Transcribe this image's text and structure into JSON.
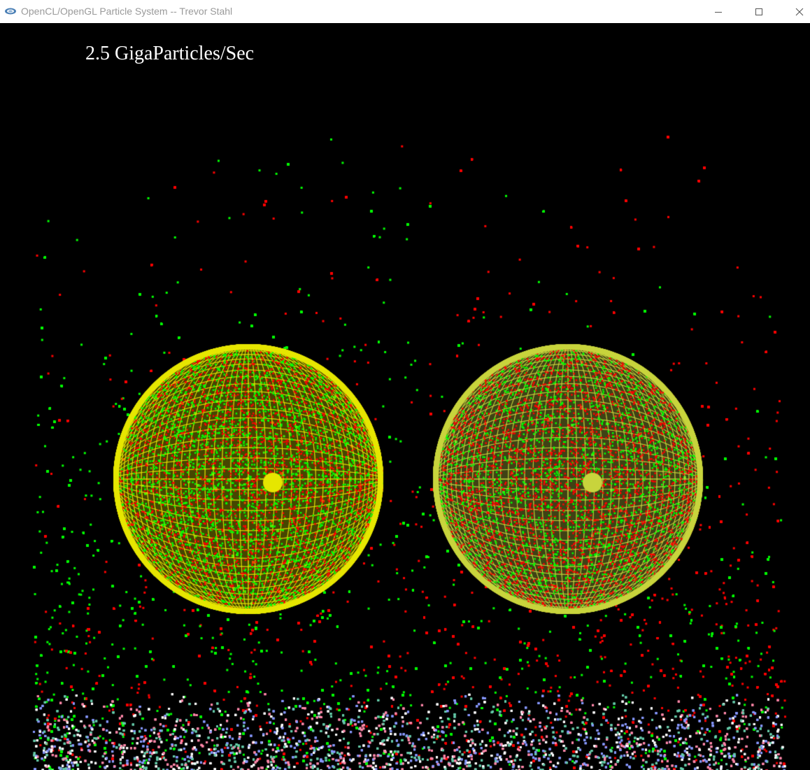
{
  "window": {
    "title": "OpenCL/OpenGL Particle System -- Trevor Stahl",
    "app_icon": "opengl-app-icon",
    "controls": {
      "minimize_icon": "minimize-icon",
      "maximize_icon": "maximize-icon",
      "close_icon": "close-icon"
    }
  },
  "scene": {
    "rate_label": "2.5 GigaParticles/Sec",
    "background_color": "#000000",
    "particle_colors": {
      "left_stream": "#00ff00",
      "right_stream": "#ff0000",
      "floor_mix": [
        "#8899ff",
        "#ff88aa",
        "#ffffff",
        "#66ccaa"
      ]
    },
    "sphere_colors": {
      "left_sphere": "#e6e600",
      "right_sphere": "#c8d43c"
    }
  }
}
